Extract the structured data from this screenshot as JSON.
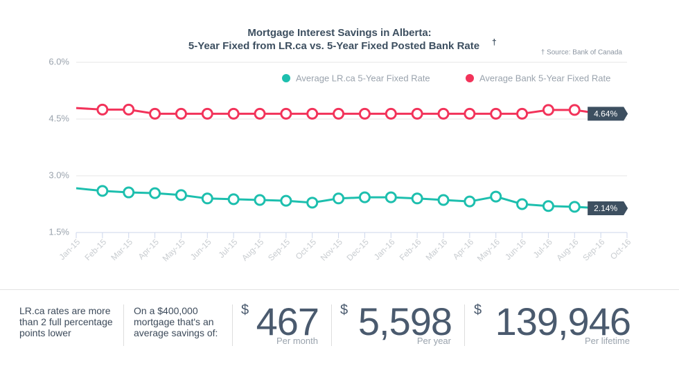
{
  "chart_data": {
    "type": "line",
    "title": "Mortgage Interest Savings in Alberta:",
    "subtitle": "5-Year Fixed from LR.ca vs. 5-Year Fixed Posted Bank Rate",
    "subtitle_mark": "†",
    "source": "† Source: Bank of Canada",
    "categories": [
      "Jan-15",
      "Feb-15",
      "Mar-15",
      "Apr-15",
      "May-15",
      "Jun-15",
      "Jul-15",
      "Aug-15",
      "Sep-15",
      "Oct-15",
      "Nov-15",
      "Dec-15",
      "Jan-16",
      "Feb-16",
      "Mar-16",
      "Apr-16",
      "May-16",
      "Jun-16",
      "Jul-16",
      "Aug-16",
      "Sep-16",
      "Oct-16"
    ],
    "series": [
      {
        "name": "Average LR.ca 5-Year Fixed Rate",
        "color": "#1dbfae",
        "values": [
          2.67,
          2.6,
          2.56,
          2.54,
          2.49,
          2.4,
          2.38,
          2.36,
          2.34,
          2.29,
          2.4,
          2.43,
          2.43,
          2.4,
          2.36,
          2.32,
          2.45,
          2.25,
          2.2,
          2.18,
          2.14,
          null
        ],
        "value_labels": [
          null,
          null,
          null,
          null,
          null,
          null,
          null,
          null,
          null,
          null,
          null,
          null,
          null,
          null,
          null,
          null,
          null,
          null,
          null,
          null,
          "2.14%",
          null
        ]
      },
      {
        "name": "Average Bank 5-Year Fixed Rate",
        "color": "#f2335a",
        "values": [
          4.79,
          4.75,
          4.75,
          4.64,
          4.64,
          4.64,
          4.64,
          4.64,
          4.64,
          4.64,
          4.64,
          4.64,
          4.64,
          4.64,
          4.64,
          4.64,
          4.64,
          4.64,
          4.74,
          4.74,
          4.64,
          null
        ],
        "value_labels": [
          null,
          null,
          null,
          null,
          null,
          null,
          null,
          null,
          null,
          null,
          null,
          null,
          null,
          null,
          null,
          null,
          null,
          null,
          null,
          null,
          "4.64%",
          null
        ]
      }
    ],
    "ylim": [
      1.5,
      6.0
    ],
    "yticks": [
      {
        "value": 1.5,
        "label": "1.5%"
      },
      {
        "value": 3.0,
        "label": "3.0%"
      },
      {
        "value": 4.5,
        "label": "4.5%"
      },
      {
        "value": 6.0,
        "label": "6.0%"
      }
    ],
    "grid": true,
    "legend": "top-right"
  },
  "summary": {
    "note": "LR.ca rates are more than 2 full percentage points lower",
    "intro": "On a $400,000 mortgage that's an average savings of:",
    "stats": [
      {
        "currency": "$",
        "amount": "467",
        "unit": "Per month"
      },
      {
        "currency": "$",
        "amount": "5,598",
        "unit": "Per year"
      },
      {
        "currency": "$",
        "amount": "139,946",
        "unit": "Per lifetime"
      }
    ]
  }
}
